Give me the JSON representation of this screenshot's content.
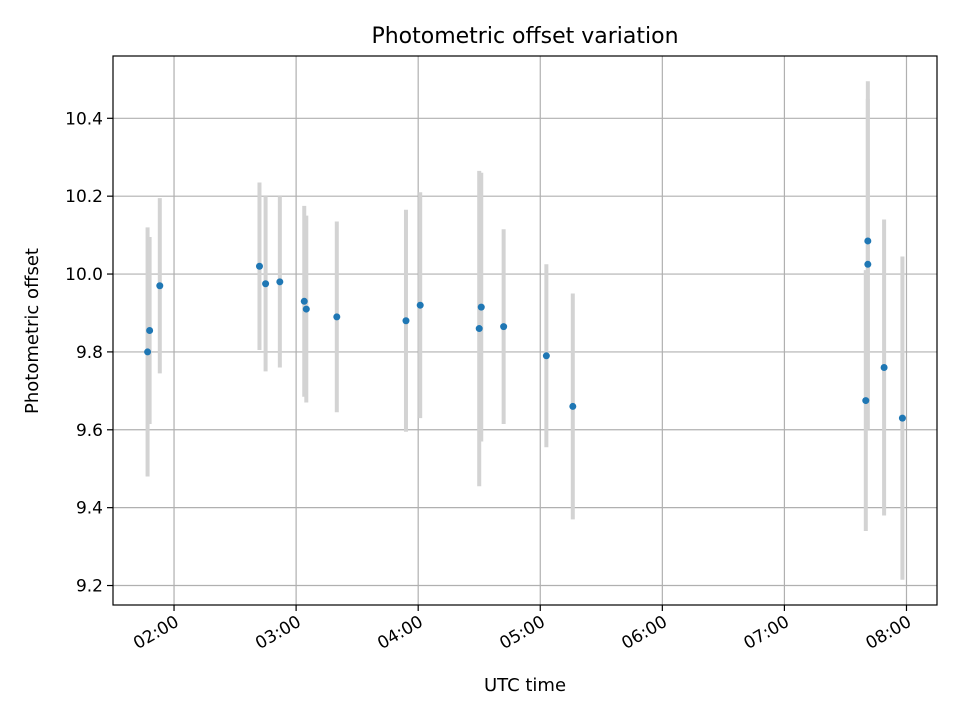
{
  "chart_data": {
    "type": "scatter",
    "title": "Photometric offset variation",
    "xlabel": "UTC time",
    "ylabel": "Photometric offset",
    "grid": true,
    "xlim": [
      "01:30",
      "08:15"
    ],
    "ylim": [
      9.15,
      10.56
    ],
    "x_ticks": [
      "02:00",
      "03:00",
      "04:00",
      "05:00",
      "06:00",
      "07:00",
      "08:00"
    ],
    "y_ticks": [
      "9.2",
      "9.4",
      "9.6",
      "9.8",
      "10.0",
      "10.2",
      "10.4"
    ],
    "errorbar_color": "#d3d3d3",
    "marker_color": "#1f77b4",
    "points": [
      {
        "x": "01:47",
        "y": 9.8,
        "yerr": 0.32
      },
      {
        "x": "01:48",
        "y": 9.855,
        "yerr": 0.24
      },
      {
        "x": "01:53",
        "y": 9.97,
        "yerr": 0.225
      },
      {
        "x": "02:42",
        "y": 10.02,
        "yerr": 0.215
      },
      {
        "x": "02:45",
        "y": 9.975,
        "yerr": 0.225
      },
      {
        "x": "02:52",
        "y": 9.98,
        "yerr": 0.22
      },
      {
        "x": "03:04",
        "y": 9.93,
        "yerr": 0.245
      },
      {
        "x": "03:05",
        "y": 9.91,
        "yerr": 0.24
      },
      {
        "x": "03:20",
        "y": 9.89,
        "yerr": 0.245
      },
      {
        "x": "03:54",
        "y": 9.88,
        "yerr": 0.285
      },
      {
        "x": "04:01",
        "y": 9.92,
        "yerr": 0.29
      },
      {
        "x": "04:30",
        "y": 9.86,
        "yerr": 0.405
      },
      {
        "x": "04:31",
        "y": 9.915,
        "yerr": 0.345
      },
      {
        "x": "04:42",
        "y": 9.865,
        "yerr": 0.25
      },
      {
        "x": "05:03",
        "y": 9.79,
        "yerr": 0.235
      },
      {
        "x": "05:16",
        "y": 9.66,
        "yerr": 0.29
      },
      {
        "x": "07:40",
        "y": 9.675,
        "yerr": 0.335
      },
      {
        "x": "07:41",
        "y": 10.085,
        "yerr": 0.41
      },
      {
        "x": "07:41",
        "y": 10.025,
        "yerr": 0.425
      },
      {
        "x": "07:49",
        "y": 9.76,
        "yerr": 0.38
      },
      {
        "x": "07:58",
        "y": 9.63,
        "yerr": 0.415
      }
    ]
  }
}
